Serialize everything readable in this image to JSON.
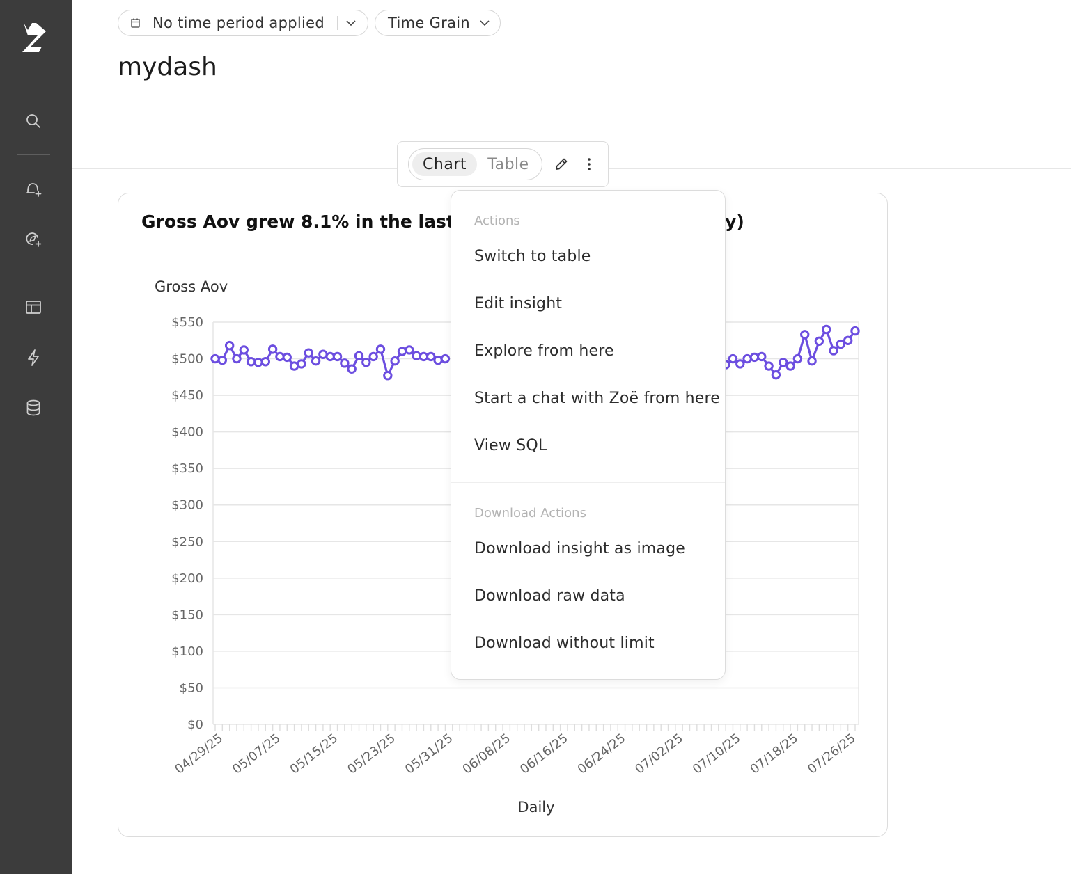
{
  "sidebar": {
    "items": [
      {
        "name": "logo-icon"
      },
      {
        "name": "search-icon"
      },
      {
        "name": "new-alert-icon"
      },
      {
        "name": "new-exploration-icon"
      },
      {
        "name": "dashboards-icon"
      },
      {
        "name": "actions-icon"
      },
      {
        "name": "database-icon"
      }
    ]
  },
  "filters": {
    "time_period": "No time period applied",
    "time_grain": "Time Grain"
  },
  "page": {
    "title": "mydash"
  },
  "toolbar": {
    "chart_label": "Chart",
    "table_label": "Table",
    "selected": "Chart"
  },
  "card": {
    "title_left": "Gross Aov grew 8.1% in the last 90",
    "title_right": "ay)"
  },
  "menu": {
    "section_actions": "Actions",
    "switch_to_table": "Switch to table",
    "edit_insight": "Edit insight",
    "explore_from_here": "Explore from here",
    "start_chat": "Start a chat with Zoë from here",
    "view_sql": "View SQL",
    "section_download": "Download Actions",
    "download_image": "Download insight as image",
    "download_raw": "Download raw data",
    "download_without_limit": "Download without limit"
  },
  "colors": {
    "sidebar": "#3c3c3c",
    "series": "#6c4ee0",
    "grid": "#e6e6e6"
  },
  "chart_data": {
    "type": "line",
    "ylabel": "Gross Aov",
    "xlabel": "Daily",
    "ylim": [
      0,
      550
    ],
    "y_ticks": [
      "$0",
      "$50",
      "$100",
      "$150",
      "$200",
      "$250",
      "$300",
      "$350",
      "$400",
      "$450",
      "$500",
      "$550"
    ],
    "x_tick_labels": [
      "04/29/25",
      "05/07/25",
      "05/15/25",
      "05/23/25",
      "05/31/25",
      "06/08/25",
      "06/16/25",
      "06/24/25",
      "07/02/25",
      "07/10/25",
      "07/18/25",
      "07/26/25"
    ],
    "grid": true,
    "series": [
      {
        "values": [
          500,
          498,
          518,
          500,
          512,
          496,
          495,
          496,
          513,
          503,
          502,
          490,
          493,
          508,
          497,
          506,
          503,
          503,
          494,
          486,
          504,
          495,
          503,
          513,
          477,
          497,
          510,
          512,
          504,
          503,
          503,
          498,
          500,
          null,
          null,
          null,
          null,
          null,
          null,
          null,
          null,
          null,
          null,
          null,
          null,
          null,
          null,
          null,
          null,
          null,
          null,
          null,
          null,
          null,
          null,
          null,
          null,
          null,
          null,
          null,
          null,
          null,
          null,
          null,
          null,
          null,
          null,
          null,
          null,
          null,
          null,
          492,
          500,
          493,
          500,
          502,
          503,
          490,
          478,
          495,
          490,
          500,
          533,
          497,
          524,
          540,
          511,
          520,
          525,
          538
        ]
      }
    ]
  }
}
